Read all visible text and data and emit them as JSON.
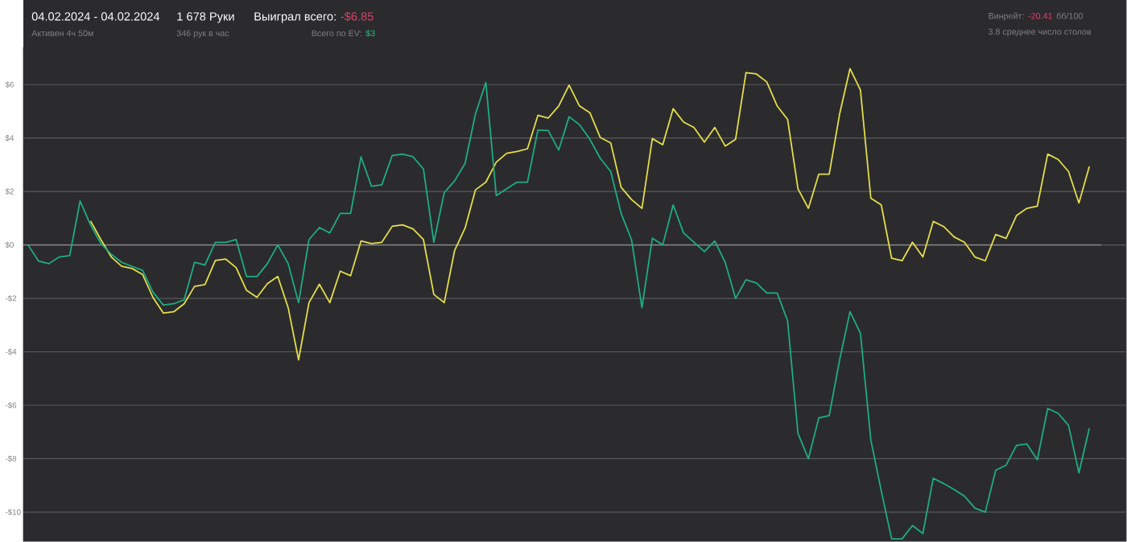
{
  "chart_data": {
    "type": "line",
    "title": "04.02.2024 - 04.02.2024",
    "subtitle": "Активен 4ч 50м",
    "annotations": [
      "1 678 Руки",
      "346 рук в час",
      "Выиграл всего:",
      "-$6.85",
      "Всего по EV:",
      "$3",
      "Винрейт:",
      "-20.41",
      "бб/100",
      "3.8 среднее число столов"
    ],
    "categories": [
      null,
      null,
      null,
      null,
      null,
      null,
      null,
      null,
      null,
      null,
      null,
      null,
      null,
      null,
      null,
      null,
      null,
      null,
      null,
      null,
      null,
      null,
      null,
      null,
      null,
      null,
      null,
      null,
      null,
      null,
      null,
      null,
      null,
      null,
      null,
      null,
      null,
      null,
      null,
      null,
      null,
      null,
      null,
      null,
      null,
      null,
      null,
      null,
      null,
      null,
      null,
      null,
      null,
      null,
      null,
      null,
      null,
      null,
      null,
      null,
      null,
      null,
      null,
      null,
      null,
      null,
      null,
      null,
      null,
      null,
      null,
      null,
      null,
      null,
      null,
      null,
      null,
      null,
      null,
      null,
      null,
      null,
      null,
      null,
      null,
      null,
      null,
      null,
      null,
      null,
      null,
      null,
      null,
      null,
      null,
      null,
      null,
      null,
      null,
      null,
      null,
      null,
      null
    ],
    "ylim": [
      -11.1,
      7.4
    ],
    "yticks": [
      {
        "value": 6,
        "label": "$6"
      },
      {
        "value": 4,
        "label": "$4"
      },
      {
        "value": 2,
        "label": "$2"
      },
      {
        "value": 0,
        "label": "$0"
      },
      {
        "value": -2,
        "label": "-$2"
      },
      {
        "value": -4,
        "label": "-$4"
      },
      {
        "value": -6,
        "label": "-$6"
      },
      {
        "value": -8,
        "label": "-$8"
      },
      {
        "value": -10,
        "label": "-$10"
      }
    ],
    "tick_labels": "y",
    "grid": "y",
    "ref_lines": [
      {
        "axis": "y",
        "value": 0,
        "color": "#8a8a8a"
      }
    ],
    "series": [
      {
        "color": "#e6df4c",
        "values": [
          null,
          null,
          null,
          null,
          null,
          null,
          0.9,
          0.2,
          -0.45,
          -0.8,
          -0.88,
          -1.1,
          -1.96,
          -2.55,
          -2.5,
          -2.2,
          -1.55,
          -1.48,
          -0.58,
          -0.53,
          -0.85,
          -1.7,
          -1.96,
          -1.45,
          -1.18,
          -2.35,
          -4.3,
          -2.16,
          -1.47,
          -2.16,
          -0.98,
          -1.15,
          0.15,
          0.05,
          0.1,
          0.7,
          0.75,
          0.6,
          0.2,
          -1.85,
          -2.16,
          -0.2,
          0.63,
          2.06,
          2.35,
          3.1,
          3.43,
          3.5,
          3.6,
          4.85,
          4.75,
          5.2,
          5.98,
          5.2,
          4.95,
          4.02,
          3.82,
          2.16,
          1.7,
          1.37,
          3.98,
          3.75,
          5.1,
          4.6,
          4.4,
          3.85,
          4.4,
          3.7,
          3.95,
          6.45,
          6.4,
          6.1,
          5.2,
          4.7,
          2.1,
          1.37,
          2.65,
          2.65,
          4.9,
          6.6,
          5.8,
          1.75,
          1.5,
          -0.5,
          -0.59,
          0.1,
          -0.45,
          0.88,
          0.69,
          0.3,
          0.1,
          -0.45,
          -0.59,
          0.39,
          0.25,
          1.1,
          1.37,
          1.45,
          3.4,
          3.2,
          2.75,
          1.57,
          2.94
        ]
      },
      {
        "color": "#1fae82",
        "values": [
          0,
          -0.6,
          -0.7,
          -0.45,
          -0.4,
          1.65,
          0.75,
          0.05,
          -0.35,
          -0.65,
          -0.8,
          -0.95,
          -1.76,
          -2.25,
          -2.2,
          -2.05,
          -0.65,
          -0.75,
          0.1,
          0.1,
          0.2,
          -1.18,
          -1.18,
          -0.7,
          0,
          -0.7,
          -2.16,
          0.2,
          0.65,
          0.45,
          1.18,
          1.18,
          3.3,
          2.2,
          2.25,
          3.35,
          3.4,
          3.3,
          2.84,
          0.1,
          1.96,
          2.4,
          3.05,
          4.9,
          6.08,
          1.85,
          2.1,
          2.35,
          2.35,
          4.3,
          4.28,
          3.55,
          4.8,
          4.5,
          3.95,
          3.24,
          2.75,
          1.18,
          0.2,
          -2.35,
          0.25,
          0,
          1.5,
          0.45,
          0.1,
          -0.25,
          0.15,
          -0.65,
          -2.0,
          -1.3,
          -1.42,
          -1.8,
          -1.8,
          -2.84,
          -7.06,
          -8.0,
          -6.47,
          -6.39,
          -4.3,
          -2.5,
          -3.3,
          -7.3,
          -9.2,
          -11,
          -11,
          -10.5,
          -10.8,
          -8.73,
          -8.93,
          -9.15,
          -9.4,
          -9.85,
          -10,
          -8.43,
          -8.24,
          -7.5,
          -7.45,
          -8.04,
          -6.12,
          -6.3,
          -6.75,
          -8.53,
          -6.86
        ]
      }
    ]
  }
}
